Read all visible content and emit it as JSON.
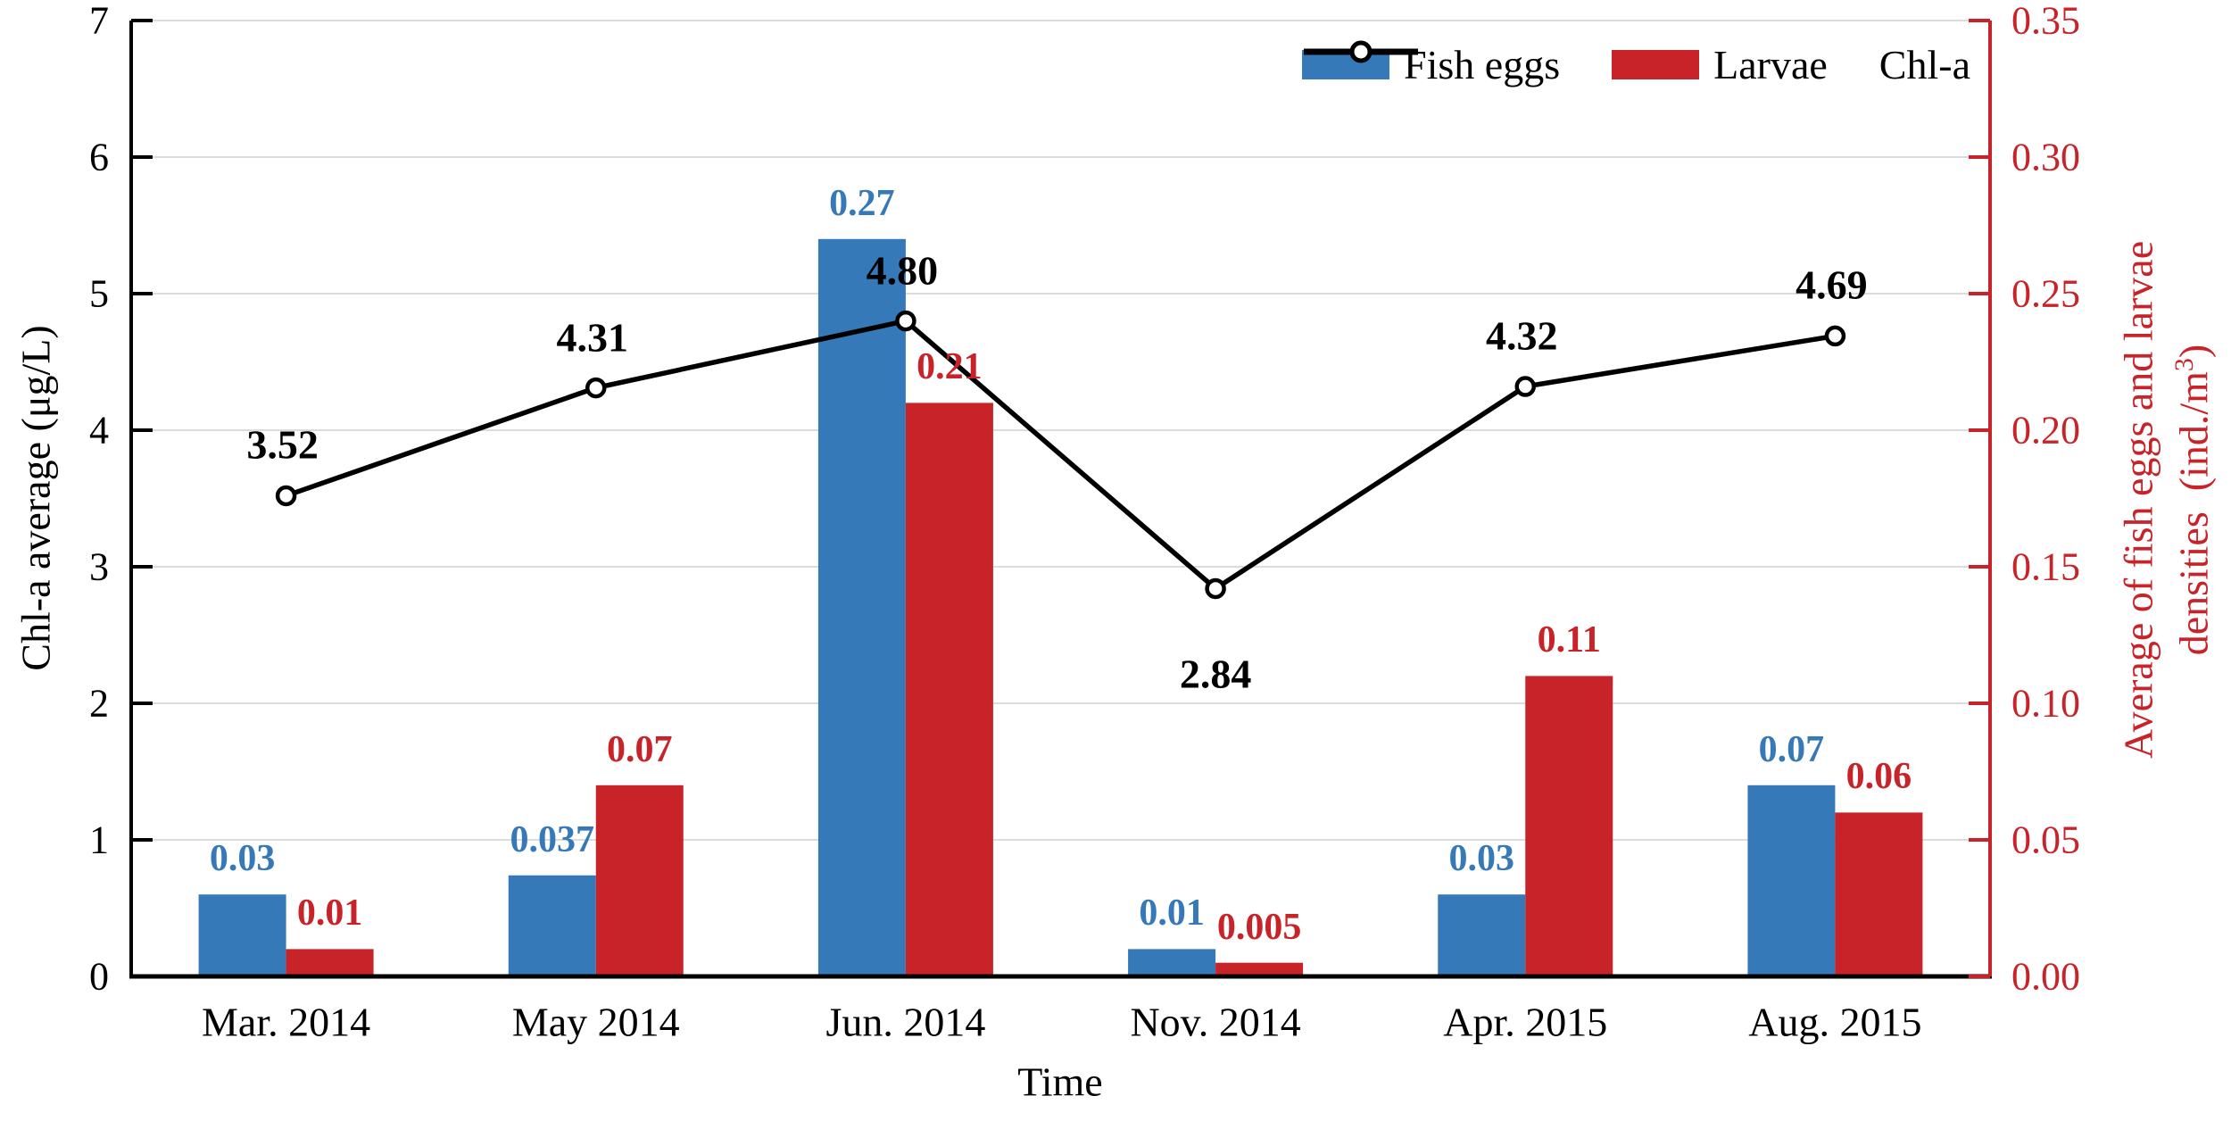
{
  "legend": {
    "fish_eggs": "Fish eggs",
    "larvae": "Larvae",
    "chl_a": "Chl-a"
  },
  "axes": {
    "left": {
      "title": "Chl-a average (μg/L)",
      "tick_labels": [
        "0",
        "1",
        "2",
        "3",
        "4",
        "5",
        "6",
        "7"
      ]
    },
    "right": {
      "title_line1": "Average of fish eggs and larvae",
      "title_line2_pre": "densities  (ind./m",
      "title_line2_sup": "3",
      "title_line2_post": ")",
      "tick_labels": [
        "0.00",
        "0.05",
        "0.10",
        "0.15",
        "0.20",
        "0.25",
        "0.30",
        "0.35"
      ]
    },
    "x": {
      "title": "Time"
    }
  },
  "colors": {
    "fish_eggs_blue": "#3679b8",
    "larvae_red": "#c82329",
    "chl_a_black": "#000000",
    "gridline_gray": "#dcdcdc"
  },
  "chart_data": {
    "type": "bar",
    "subtype": "grouped bars + overlaid line, dual y-axes",
    "categories": [
      "Mar. 2014",
      "May 2014",
      "Jun. 2014",
      "Nov. 2014",
      "Apr. 2015",
      "Aug. 2015"
    ],
    "series": [
      {
        "name": "Fish eggs",
        "type": "bar",
        "axis": "right",
        "color": "#3679b8",
        "values": [
          0.03,
          0.037,
          0.27,
          0.01,
          0.03,
          0.07
        ],
        "labels": [
          "0.03",
          "0.037",
          "0.27",
          "0.01",
          "0.03",
          "0.07"
        ]
      },
      {
        "name": "Larvae",
        "type": "bar",
        "axis": "right",
        "color": "#c82329",
        "values": [
          0.01,
          0.07,
          0.21,
          0.005,
          0.11,
          0.06
        ],
        "labels": [
          "0.01",
          "0.07",
          "0.21",
          "0.005",
          "0.11",
          "0.06"
        ]
      },
      {
        "name": "Chl-a",
        "type": "line",
        "axis": "left",
        "color": "#000000",
        "marker": "open-circle",
        "values": [
          3.52,
          4.31,
          4.8,
          2.84,
          4.32,
          4.69
        ],
        "labels": [
          "3.52",
          "4.31",
          "4.80",
          "2.84",
          "4.32",
          "4.69"
        ]
      }
    ],
    "title": "",
    "xlabel": "Time",
    "ylabel_left": "Chl-a average (μg/L)",
    "ylabel_right": "Average of fish eggs and larvae densities (ind./m³)",
    "ylim_left": [
      0,
      7
    ],
    "ylim_right": [
      0,
      0.35
    ],
    "left_ticks": [
      0,
      1,
      2,
      3,
      4,
      5,
      6,
      7
    ],
    "right_ticks": [
      0.0,
      0.05,
      0.1,
      0.15,
      0.2,
      0.25,
      0.3,
      0.35
    ],
    "grid": true,
    "legend_position": "top-right-inside"
  }
}
